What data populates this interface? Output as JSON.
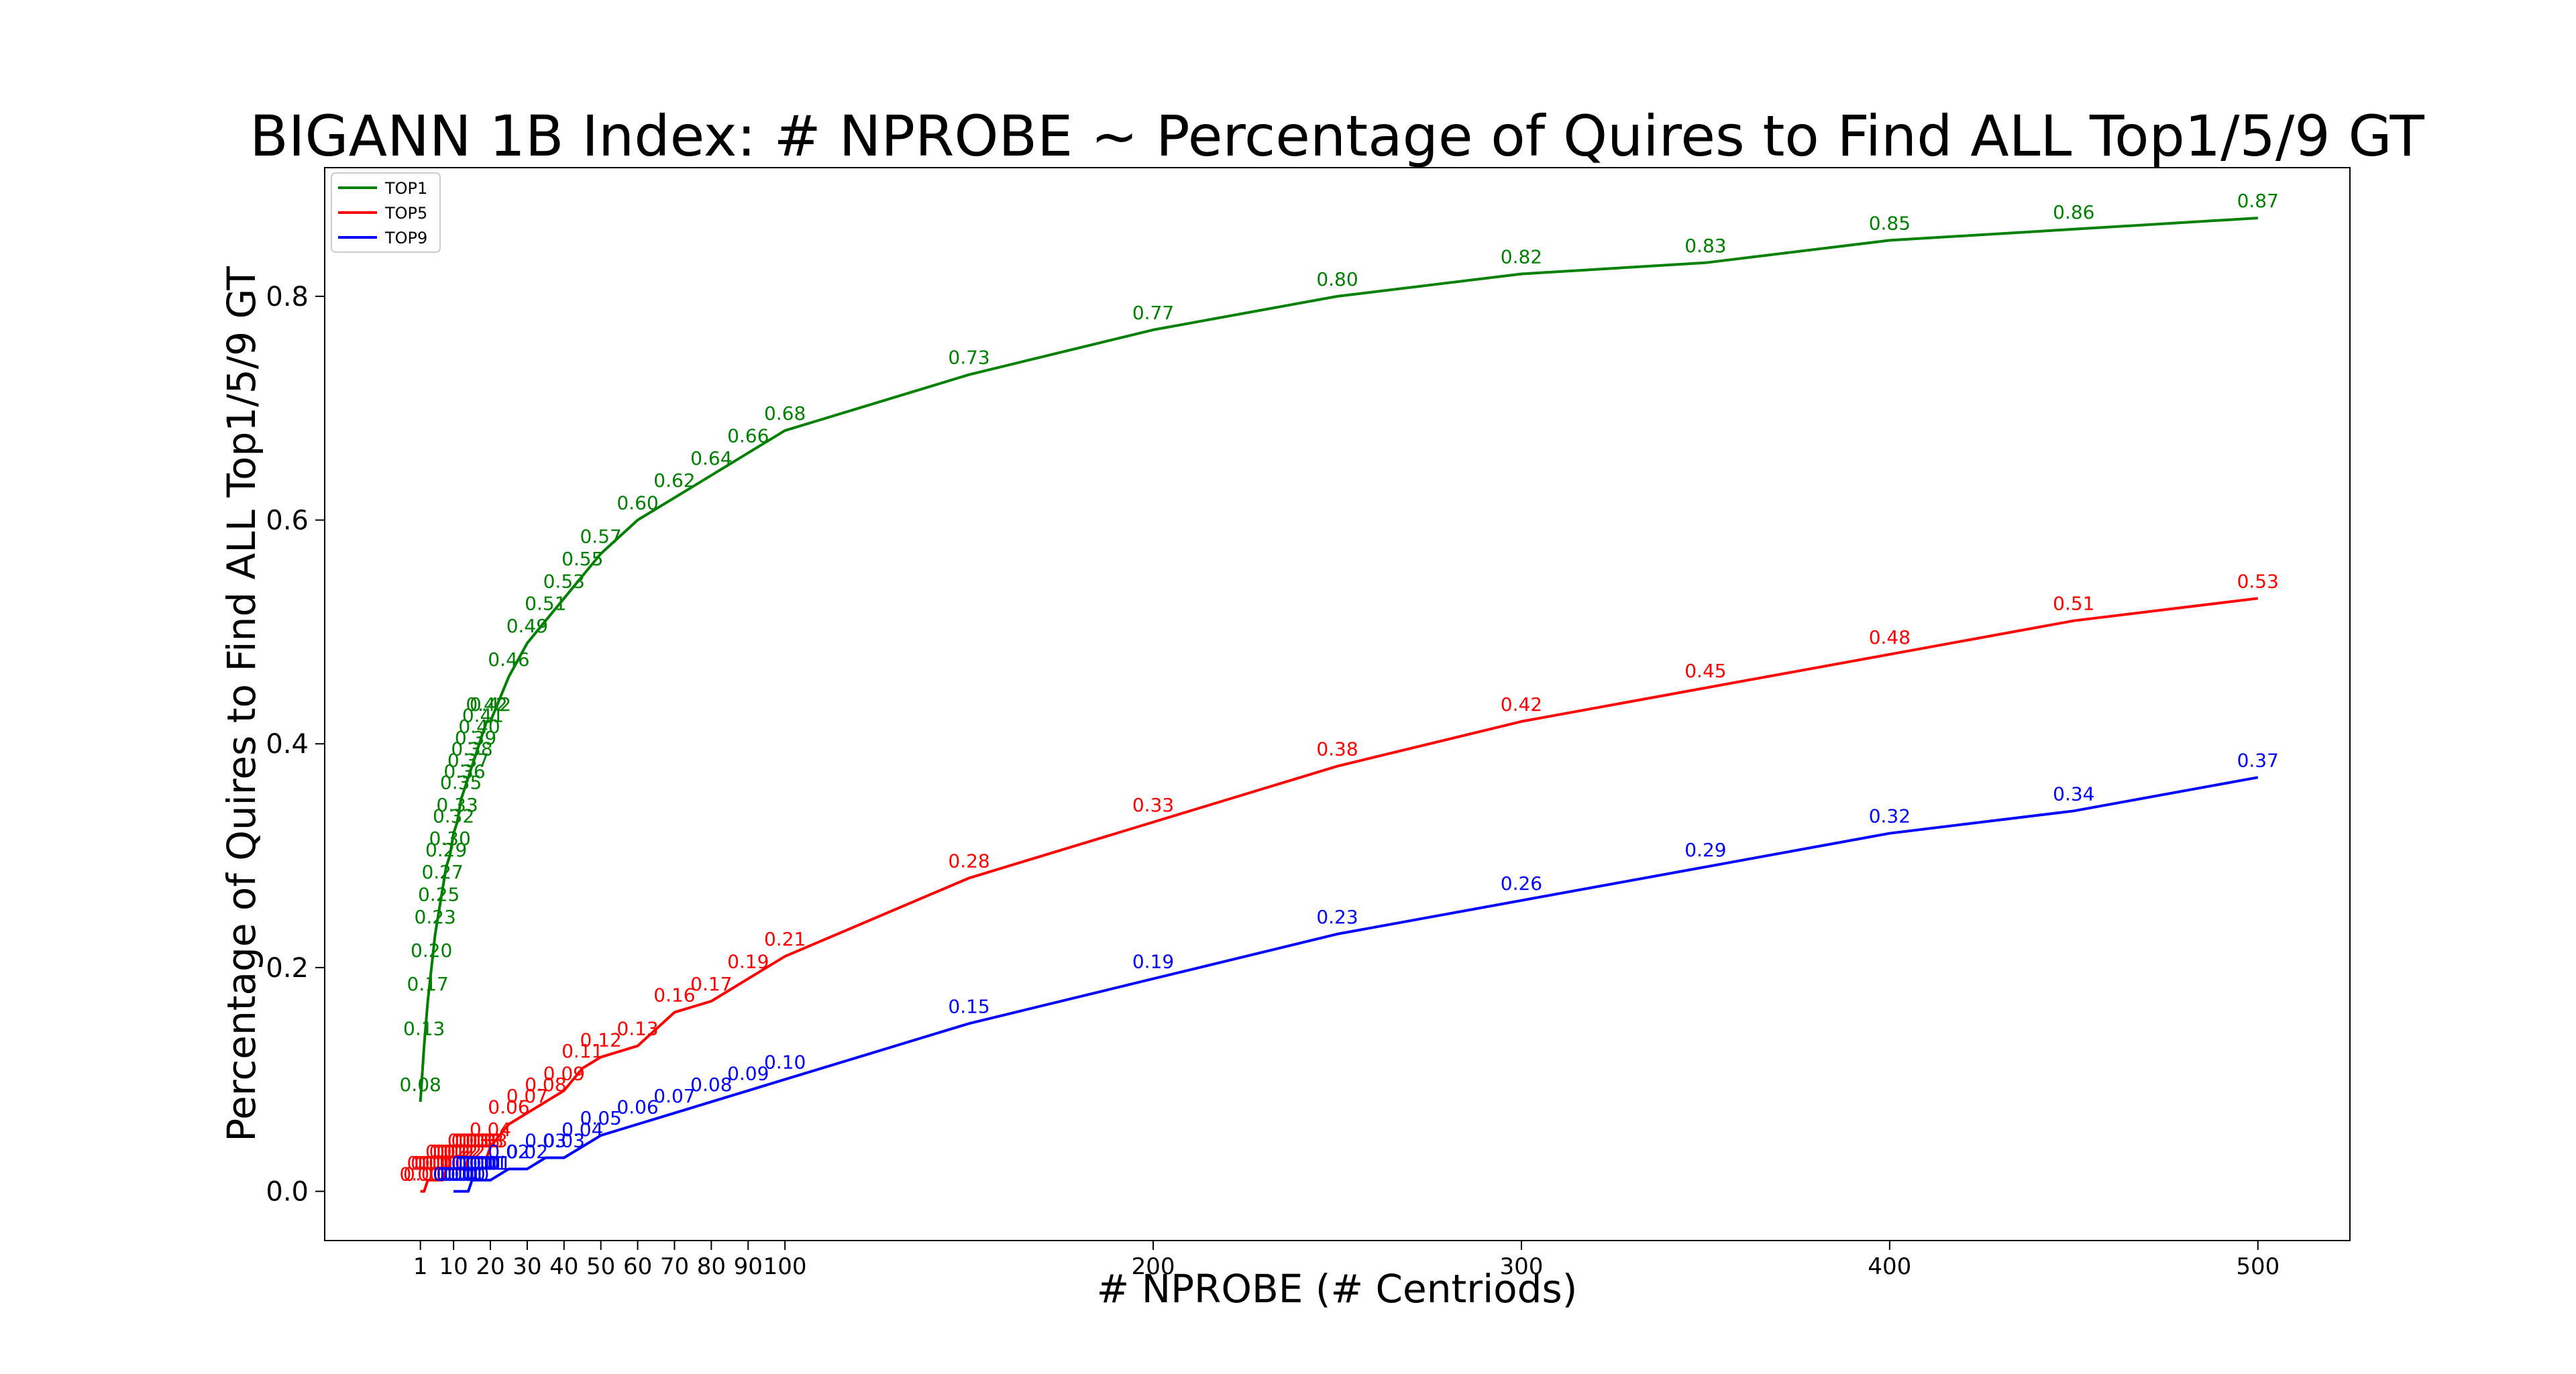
{
  "chart_data": {
    "type": "line",
    "title": "BIGANN 1B Index: # NPROBE ~ Percentage of Quires to Find ALL Top1/5/9 GT",
    "xlabel": "# NPROBE (# Centriods)",
    "ylabel": "Percentage of Quires to Find ALL Top1/5/9 GT",
    "xlim": [
      -25,
      525
    ],
    "ylim": [
      -0.044,
      0.915
    ],
    "x_ticks": [
      1,
      10,
      20,
      30,
      40,
      50,
      60,
      70,
      80,
      90,
      100,
      200,
      300,
      400,
      500
    ],
    "y_ticks": [
      0.0,
      0.2,
      0.4,
      0.6,
      0.8
    ],
    "y_tick_labels": [
      "0.0",
      "0.2",
      "0.4",
      "0.6",
      "0.8"
    ],
    "grid": false,
    "legend_position": "top-left",
    "series": [
      {
        "name": "TOP1",
        "color": "#008000",
        "x": [
          1,
          2,
          3,
          4,
          5,
          6,
          7,
          8,
          9,
          10,
          11,
          12,
          13,
          14,
          15,
          16,
          17,
          18,
          19,
          20,
          25,
          30,
          35,
          40,
          45,
          50,
          60,
          70,
          80,
          90,
          100,
          150,
          200,
          250,
          300,
          350,
          400,
          450,
          500
        ],
        "y": [
          0.08,
          0.13,
          0.17,
          0.2,
          0.23,
          0.25,
          0.27,
          0.29,
          0.3,
          0.32,
          0.33,
          0.35,
          0.36,
          0.37,
          0.38,
          0.39,
          0.4,
          0.41,
          0.42,
          0.42,
          0.46,
          0.49,
          0.51,
          0.53,
          0.55,
          0.57,
          0.6,
          0.62,
          0.64,
          0.66,
          0.68,
          0.73,
          0.77,
          0.8,
          0.82,
          0.83,
          0.85,
          0.86,
          0.87
        ],
        "labels": [
          "0.08",
          "0.13",
          "0.17",
          "0.20",
          "0.23",
          "0.25",
          "0.27",
          "0.29",
          "0.30",
          "0.32",
          "0.33",
          "0.35",
          "0.36",
          "0.37",
          "0.38",
          "0.39",
          "0.40",
          "0.41",
          "0.42",
          "0.42",
          "0.46",
          "0.49",
          "0.51",
          "0.53",
          "0.55",
          "0.57",
          "0.60",
          "0.62",
          "0.64",
          "0.66",
          "0.68",
          "0.73",
          "0.77",
          "0.80",
          "0.82",
          "0.83",
          "0.85",
          "0.86",
          "0.87"
        ]
      },
      {
        "name": "TOP5",
        "color": "#ff0000",
        "x": [
          1,
          2,
          3,
          4,
          5,
          6,
          7,
          8,
          9,
          10,
          11,
          12,
          13,
          14,
          15,
          16,
          17,
          18,
          19,
          20,
          25,
          30,
          35,
          40,
          45,
          50,
          60,
          70,
          80,
          90,
          100,
          150,
          200,
          250,
          300,
          350,
          400,
          450,
          500
        ],
        "y": [
          0.0,
          0.0,
          0.01,
          0.01,
          0.01,
          0.01,
          0.01,
          0.02,
          0.02,
          0.02,
          0.02,
          0.02,
          0.02,
          0.03,
          0.03,
          0.03,
          0.03,
          0.03,
          0.03,
          0.04,
          0.06,
          0.07,
          0.08,
          0.09,
          0.11,
          0.12,
          0.13,
          0.16,
          0.17,
          0.19,
          0.21,
          0.28,
          0.33,
          0.38,
          0.42,
          0.45,
          0.48,
          0.51,
          0.53
        ],
        "labels": [
          "0.00",
          "0.00",
          "0.01",
          "0.01",
          "0.01",
          "0.01",
          "0.01",
          "0.02",
          "0.02",
          "0.02",
          "0.02",
          "0.02",
          "0.02",
          "0.03",
          "0.03",
          "0.03",
          "0.03",
          "0.03",
          "0.03",
          "0.04",
          "0.06",
          "0.07",
          "0.08",
          "0.09",
          "0.11",
          "0.12",
          "0.13",
          "0.16",
          "0.17",
          "0.19",
          "0.21",
          "0.28",
          "0.33",
          "0.38",
          "0.42",
          "0.45",
          "0.48",
          "0.51",
          "0.53"
        ]
      },
      {
        "name": "TOP9",
        "color": "#0000ff",
        "x": [
          10,
          11,
          12,
          13,
          14,
          15,
          16,
          17,
          18,
          19,
          20,
          25,
          30,
          35,
          40,
          45,
          50,
          60,
          70,
          80,
          90,
          100,
          150,
          200,
          250,
          300,
          350,
          400,
          450,
          500
        ],
        "y": [
          0.0,
          0.0,
          0.0,
          0.0,
          0.0,
          0.01,
          0.01,
          0.01,
          0.01,
          0.01,
          0.01,
          0.02,
          0.02,
          0.03,
          0.03,
          0.04,
          0.05,
          0.06,
          0.07,
          0.08,
          0.09,
          0.1,
          0.15,
          0.19,
          0.23,
          0.26,
          0.29,
          0.32,
          0.34,
          0.37
        ],
        "labels": [
          "0.00",
          "0.00",
          "0.00",
          "0.00",
          "0.00",
          "0.01",
          "0.01",
          "0.01",
          "0.01",
          "0.01",
          "0.01",
          "0.02",
          "0.02",
          "0.03",
          "0.03",
          "0.04",
          "0.05",
          "0.06",
          "0.07",
          "0.08",
          "0.09",
          "0.10",
          "0.15",
          "0.19",
          "0.23",
          "0.26",
          "0.29",
          "0.32",
          "0.34",
          "0.37"
        ]
      }
    ]
  }
}
